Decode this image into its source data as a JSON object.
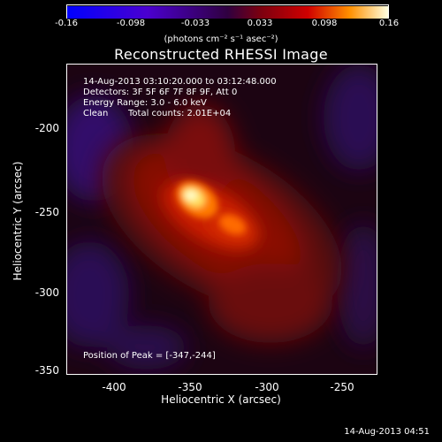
{
  "colorbar": {
    "ticks": [
      "-0.16",
      "-0.098",
      "-0.033",
      "0.033",
      "0.098",
      "0.16"
    ],
    "units": "(photons cm⁻² s⁻¹ asec⁻²)"
  },
  "title": "Reconstructed RHESSI Image",
  "info": {
    "time_range": "14-Aug-2013 03:10:20.000 to 03:12:48.000",
    "detectors": "Detectors: 3F 5F 6F 7F 8F 9F, Att 0",
    "energy": "Energy Range: 3.0 - 6.0 keV",
    "algorithm": "Clean",
    "total_counts": "Total counts: 2.01E+04",
    "peak": "Position of Peak = [-347,-244]"
  },
  "axes": {
    "xlabel": "Heliocentric X (arcsec)",
    "ylabel": "Heliocentric Y (arcsec)",
    "x_ticks": [
      "-400",
      "-350",
      "-300",
      "-250"
    ],
    "y_ticks": [
      "-200",
      "-250",
      "-300",
      "-350"
    ]
  },
  "timestamp": "14-Aug-2013 04:51"
}
